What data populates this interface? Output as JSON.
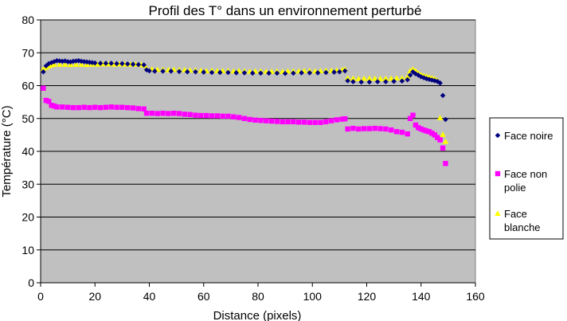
{
  "chart_data": {
    "type": "scatter",
    "title": "Profil des T° dans un environnement perturbé",
    "xlabel": "Distance (pixels)",
    "ylabel": "Température (°C)",
    "xlim": [
      0,
      160
    ],
    "ylim": [
      0,
      80
    ],
    "xticks": [
      0,
      20,
      40,
      60,
      80,
      100,
      120,
      140,
      160
    ],
    "yticks": [
      0,
      10,
      20,
      30,
      40,
      50,
      60,
      70,
      80
    ],
    "grid": "horizontal",
    "plot_background": "#c0c0c0",
    "legend_position": "right",
    "series": [
      {
        "name": "Face noire",
        "marker": "diamond",
        "color": "#000080",
        "points": [
          [
            1,
            64.2
          ],
          [
            2,
            66
          ],
          [
            3,
            66.7
          ],
          [
            4,
            67
          ],
          [
            5,
            67.3
          ],
          [
            6,
            67.6
          ],
          [
            7,
            67.5
          ],
          [
            8,
            67.4
          ],
          [
            9,
            67.5
          ],
          [
            10,
            67.3
          ],
          [
            11,
            67.2
          ],
          [
            12,
            67.4
          ],
          [
            13,
            67.5
          ],
          [
            14,
            67.6
          ],
          [
            15,
            67.4
          ],
          [
            16,
            67.3
          ],
          [
            17,
            67.2
          ],
          [
            18,
            67.1
          ],
          [
            19,
            67
          ],
          [
            20,
            66.9
          ],
          [
            22,
            66.8
          ],
          [
            24,
            66.8
          ],
          [
            26,
            66.8
          ],
          [
            28,
            66.7
          ],
          [
            30,
            66.7
          ],
          [
            32,
            66.6
          ],
          [
            34,
            66.5
          ],
          [
            36,
            66.4
          ],
          [
            38,
            66.3
          ],
          [
            39,
            64.8
          ],
          [
            40,
            64.5
          ],
          [
            42,
            64.4
          ],
          [
            45,
            64.4
          ],
          [
            48,
            64.4
          ],
          [
            51,
            64.3
          ],
          [
            54,
            64.2
          ],
          [
            57,
            64.2
          ],
          [
            60,
            64.1
          ],
          [
            63,
            64
          ],
          [
            66,
            64
          ],
          [
            69,
            64
          ],
          [
            72,
            63.9
          ],
          [
            75,
            63.9
          ],
          [
            78,
            63.8
          ],
          [
            81,
            63.8
          ],
          [
            84,
            63.8
          ],
          [
            87,
            63.8
          ],
          [
            90,
            63.7
          ],
          [
            93,
            63.8
          ],
          [
            96,
            63.9
          ],
          [
            99,
            63.9
          ],
          [
            102,
            63.9
          ],
          [
            105,
            64
          ],
          [
            108,
            64.1
          ],
          [
            110,
            64.2
          ],
          [
            112,
            64.5
          ],
          [
            113,
            61.5
          ],
          [
            115,
            61.2
          ],
          [
            118,
            61.1
          ],
          [
            121,
            61.1
          ],
          [
            124,
            61.2
          ],
          [
            127,
            61.2
          ],
          [
            130,
            61.3
          ],
          [
            133,
            61.4
          ],
          [
            135,
            61.8
          ],
          [
            136,
            63.2
          ],
          [
            137,
            64.2
          ],
          [
            138,
            63.6
          ],
          [
            139,
            63.2
          ],
          [
            140,
            62.7
          ],
          [
            141,
            62.4
          ],
          [
            142,
            62.1
          ],
          [
            143,
            61.9
          ],
          [
            144,
            61.7
          ],
          [
            145,
            61.5
          ],
          [
            146,
            61.3
          ],
          [
            147,
            60.8
          ],
          [
            148,
            57
          ],
          [
            149,
            49.7
          ]
        ]
      },
      {
        "name": "Face non polie",
        "marker": "square",
        "color": "#ff00ff",
        "points": [
          [
            1,
            59.2
          ],
          [
            2,
            55.5
          ],
          [
            3,
            55.2
          ],
          [
            4,
            54
          ],
          [
            5,
            53.8
          ],
          [
            6,
            53.5
          ],
          [
            8,
            53.5
          ],
          [
            10,
            53.4
          ],
          [
            12,
            53.3
          ],
          [
            14,
            53.3
          ],
          [
            16,
            53.4
          ],
          [
            18,
            53.3
          ],
          [
            20,
            53.4
          ],
          [
            22,
            53.3
          ],
          [
            24,
            53.4
          ],
          [
            26,
            53.5
          ],
          [
            28,
            53.4
          ],
          [
            30,
            53.4
          ],
          [
            32,
            53.3
          ],
          [
            34,
            53.2
          ],
          [
            36,
            53
          ],
          [
            38,
            52.9
          ],
          [
            39,
            51.6
          ],
          [
            41,
            51.6
          ],
          [
            43,
            51.5
          ],
          [
            45,
            51.6
          ],
          [
            47,
            51.5
          ],
          [
            49,
            51.6
          ],
          [
            51,
            51.5
          ],
          [
            53,
            51.3
          ],
          [
            55,
            51.2
          ],
          [
            57,
            51
          ],
          [
            59,
            50.9
          ],
          [
            61,
            50.9
          ],
          [
            63,
            50.8
          ],
          [
            65,
            50.8
          ],
          [
            67,
            50.7
          ],
          [
            69,
            50.7
          ],
          [
            71,
            50.5
          ],
          [
            73,
            50.3
          ],
          [
            75,
            50
          ],
          [
            77,
            49.7
          ],
          [
            79,
            49.5
          ],
          [
            81,
            49.4
          ],
          [
            83,
            49.3
          ],
          [
            85,
            49.2
          ],
          [
            87,
            49.1
          ],
          [
            89,
            49
          ],
          [
            91,
            49
          ],
          [
            93,
            49
          ],
          [
            95,
            48.9
          ],
          [
            97,
            48.9
          ],
          [
            99,
            48.8
          ],
          [
            101,
            48.8
          ],
          [
            103,
            48.8
          ],
          [
            105,
            49
          ],
          [
            107,
            49.3
          ],
          [
            109,
            49.6
          ],
          [
            111,
            49.8
          ],
          [
            112,
            49.9
          ],
          [
            113,
            46.8
          ],
          [
            115,
            47
          ],
          [
            117,
            46.8
          ],
          [
            119,
            46.9
          ],
          [
            121,
            46.9
          ],
          [
            123,
            47
          ],
          [
            125,
            46.9
          ],
          [
            127,
            46.8
          ],
          [
            129,
            46.5
          ],
          [
            131,
            46
          ],
          [
            133,
            45.8
          ],
          [
            135,
            45.3
          ],
          [
            136,
            50
          ],
          [
            137,
            51
          ],
          [
            138,
            48
          ],
          [
            139,
            47.2
          ],
          [
            140,
            46.8
          ],
          [
            141,
            46.5
          ],
          [
            142,
            46.2
          ],
          [
            143,
            46
          ],
          [
            144,
            45.5
          ],
          [
            145,
            45
          ],
          [
            146,
            44.2
          ],
          [
            147,
            43.5
          ],
          [
            148,
            41
          ],
          [
            149,
            36.3
          ]
        ]
      },
      {
        "name": "Face blanche",
        "marker": "triangle",
        "color": "#ffff00",
        "points": [
          [
            1,
            65
          ],
          [
            2,
            65.6
          ],
          [
            3,
            66
          ],
          [
            4,
            66.3
          ],
          [
            5,
            66.5
          ],
          [
            7,
            66.5
          ],
          [
            9,
            66.5
          ],
          [
            11,
            66.4
          ],
          [
            13,
            66.5
          ],
          [
            15,
            66.5
          ],
          [
            17,
            66.4
          ],
          [
            19,
            66.5
          ],
          [
            21,
            66.5
          ],
          [
            23,
            66.6
          ],
          [
            25,
            66.6
          ],
          [
            27,
            66.5
          ],
          [
            29,
            66.6
          ],
          [
            31,
            66.5
          ],
          [
            33,
            66.5
          ],
          [
            35,
            66.5
          ],
          [
            37,
            66.4
          ],
          [
            38,
            66.2
          ],
          [
            39,
            65.3
          ],
          [
            41,
            65
          ],
          [
            43,
            64.9
          ],
          [
            45,
            64.9
          ],
          [
            47,
            64.8
          ],
          [
            49,
            64.9
          ],
          [
            51,
            64.8
          ],
          [
            53,
            64.8
          ],
          [
            55,
            64.7
          ],
          [
            57,
            64.7
          ],
          [
            59,
            64.6
          ],
          [
            61,
            64.5
          ],
          [
            63,
            64.6
          ],
          [
            65,
            64.5
          ],
          [
            67,
            64.5
          ],
          [
            69,
            64.5
          ],
          [
            71,
            64.4
          ],
          [
            73,
            64.5
          ],
          [
            75,
            64.4
          ],
          [
            77,
            64.3
          ],
          [
            79,
            64.4
          ],
          [
            81,
            64.4
          ],
          [
            83,
            64.3
          ],
          [
            85,
            64.3
          ],
          [
            87,
            64.4
          ],
          [
            89,
            64.3
          ],
          [
            91,
            64.4
          ],
          [
            93,
            64.4
          ],
          [
            95,
            64.4
          ],
          [
            97,
            64.5
          ],
          [
            99,
            64.5
          ],
          [
            101,
            64.4
          ],
          [
            103,
            64.5
          ],
          [
            105,
            64.6
          ],
          [
            107,
            64.6
          ],
          [
            109,
            64.7
          ],
          [
            111,
            64.8
          ],
          [
            112,
            65
          ],
          [
            113,
            62.3
          ],
          [
            115,
            62.2
          ],
          [
            117,
            62.1
          ],
          [
            119,
            62.2
          ],
          [
            121,
            62.2
          ],
          [
            123,
            62.2
          ],
          [
            125,
            62.1
          ],
          [
            127,
            62.2
          ],
          [
            129,
            62.2
          ],
          [
            131,
            62.3
          ],
          [
            133,
            62.3
          ],
          [
            135,
            62.7
          ],
          [
            136,
            64.5
          ],
          [
            137,
            65
          ],
          [
            138,
            64.5
          ],
          [
            139,
            63.7
          ],
          [
            140,
            63.3
          ],
          [
            141,
            63
          ],
          [
            142,
            62.8
          ],
          [
            143,
            62.6
          ],
          [
            144,
            62.3
          ],
          [
            145,
            62.1
          ],
          [
            146,
            61.6
          ],
          [
            147,
            50.2
          ],
          [
            148,
            45.1
          ],
          [
            149,
            43
          ]
        ]
      }
    ]
  }
}
